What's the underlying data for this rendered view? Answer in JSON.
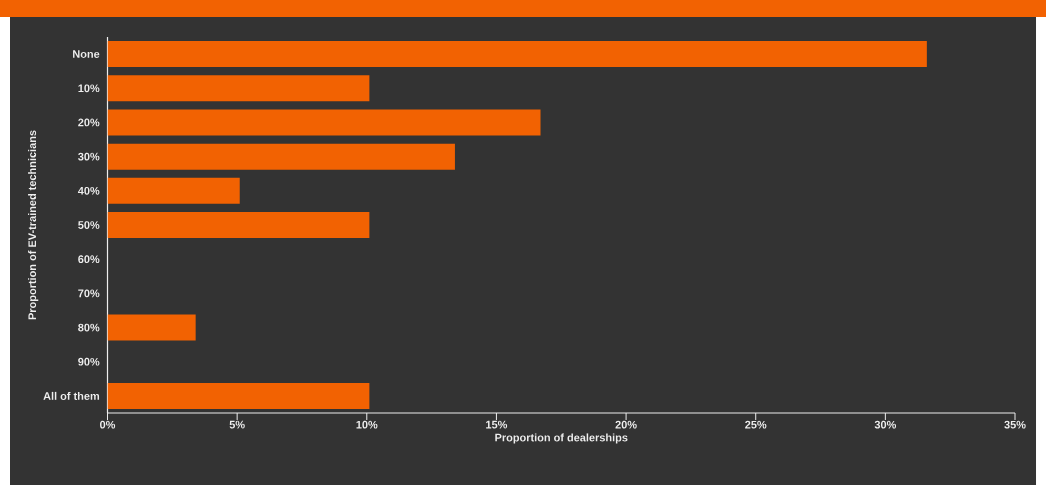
{
  "chart_data": {
    "type": "bar",
    "orientation": "horizontal",
    "categories": [
      "None",
      "10%",
      "20%",
      "30%",
      "40%",
      "50%",
      "60%",
      "70%",
      "80%",
      "90%",
      "All of them"
    ],
    "values": [
      31.6,
      10.1,
      16.7,
      13.4,
      5.1,
      10.1,
      0,
      0,
      3.4,
      0,
      10.1
    ],
    "color": "#f26202",
    "xlabel": "Proportion of dealerships",
    "ylabel": "Proportion of EV-trained technicians",
    "xlim": [
      0,
      35
    ],
    "xticks": [
      {
        "value": 0,
        "label": "0%"
      },
      {
        "value": 5,
        "label": "5%"
      },
      {
        "value": 10,
        "label": "10%"
      },
      {
        "value": 15,
        "label": "15%"
      },
      {
        "value": 20,
        "label": "20%"
      },
      {
        "value": 25,
        "label": "25%"
      },
      {
        "value": 30,
        "label": "30%"
      },
      {
        "value": 35,
        "label": "35%"
      }
    ]
  }
}
